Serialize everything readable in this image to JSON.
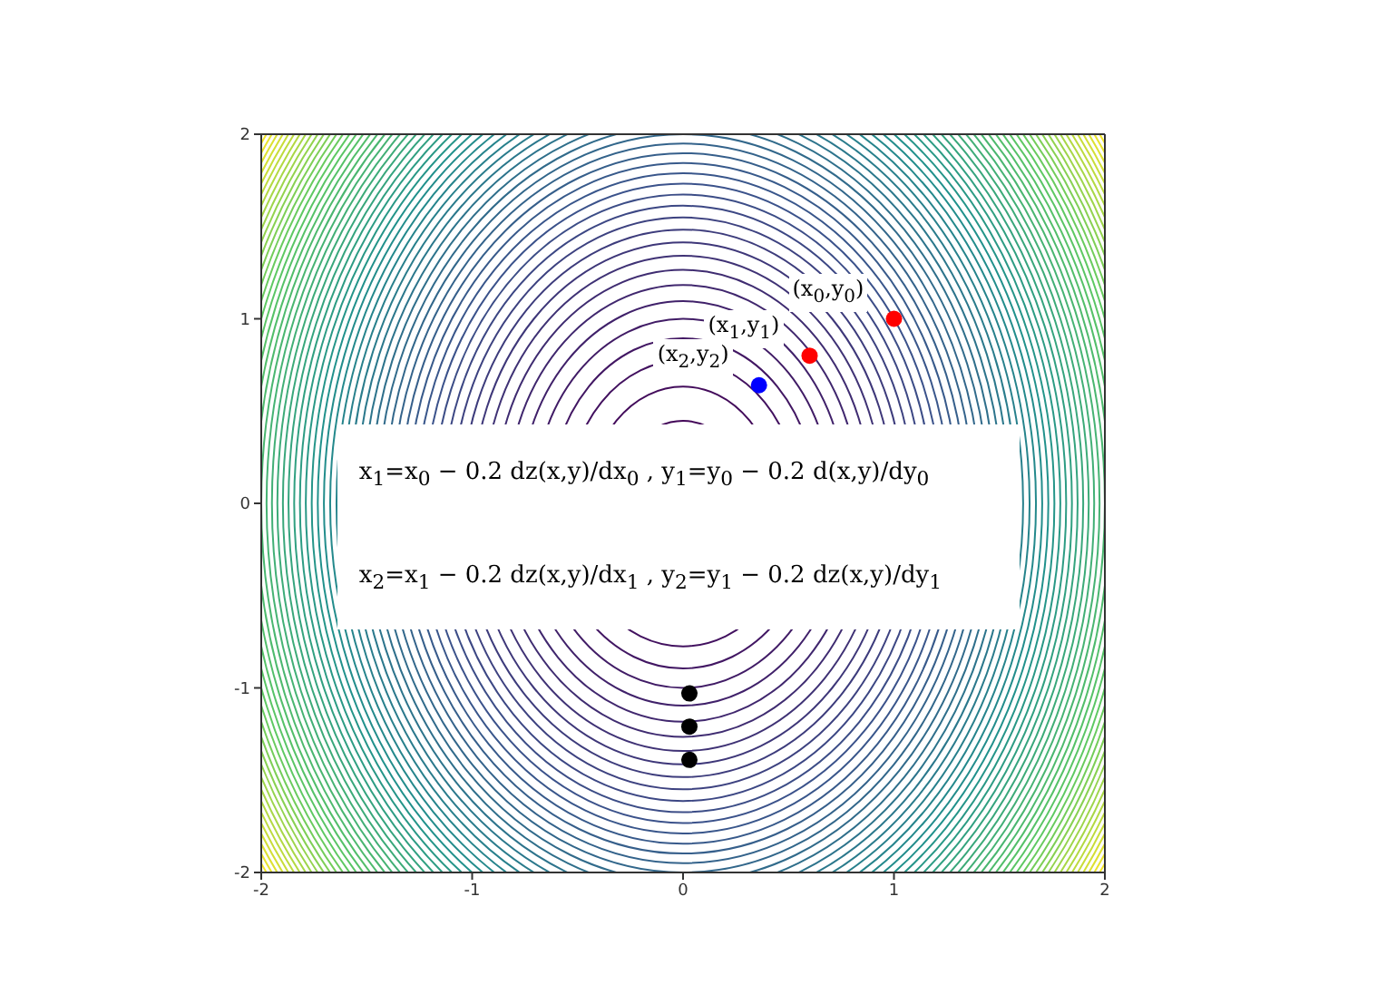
{
  "chart_data": {
    "type": "scatter",
    "xlim": [
      -2,
      2
    ],
    "ylim": [
      -2,
      2
    ],
    "xticks": [
      -2,
      -1,
      0,
      1,
      2
    ],
    "yticks": [
      -2,
      -1,
      0,
      1,
      2
    ],
    "legend": false,
    "marker": "circle",
    "series": [
      {
        "color": "#ff0000",
        "x": [
          1,
          0.6
        ],
        "values": [
          1,
          0.8
        ]
      },
      {
        "color": "#0000ff",
        "x": [
          0.36
        ],
        "values": [
          0.64
        ]
      },
      {
        "color": "#000000",
        "x": [
          0.03,
          0.03,
          0.03
        ],
        "values": [
          -1.03,
          -1.21,
          -1.39
        ]
      }
    ],
    "annotations": [
      {
        "text": "(x$_{0}$,y$_{0}$)",
        "x": 1,
        "y": 1
      },
      {
        "text": "(x$_{1}$,y$_{1}$)",
        "x": 0.6,
        "y": 0.8
      },
      {
        "text": "(x$_{2}$,y$_{2}$)",
        "x": 0.36,
        "y": 0.64
      },
      "x$_{1}$=x$_{0}$ − 0.2 dz(x,y)/dx$_{0}$ ,    y$_{1}$=y$_{0}$ − 0.2 d(x,y)/dy$_{0}$",
      "x$_{2}$=x$_{1}$ − 0.2 dz(x,y)/dx$_{1}$ ,    y$_{2}$=y$_{1}$ − 0.2 dz(x,y)/dy$_{1}$"
    ]
  }
}
